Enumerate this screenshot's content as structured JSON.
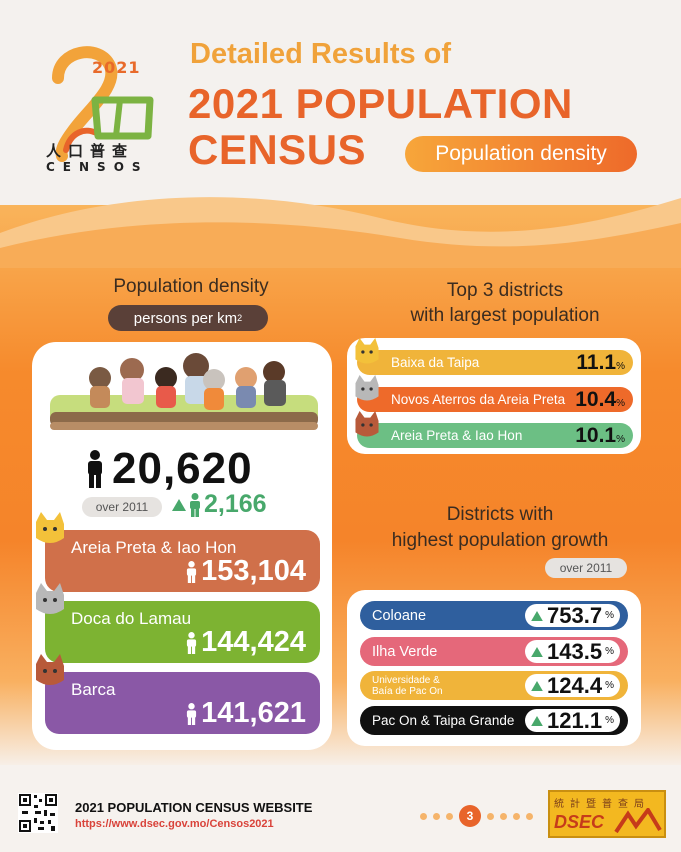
{
  "header": {
    "logo_year": "2021",
    "logo_cn": "人口普查",
    "logo_censos": "CENSOS",
    "title_line1": "Detailed Results of",
    "title_line2": "2021 POPULATION",
    "title_line3": "CENSUS",
    "topic": "Population density"
  },
  "density": {
    "title": "Population density",
    "unit": "persons per km",
    "unit_sup": "2",
    "total": "20,620",
    "over_label": "over 2011",
    "increase": "2,166",
    "districts": [
      {
        "name": "Areia Preta & Iao Hon",
        "value": "153,104",
        "color": "#d0704a"
      },
      {
        "name": "Doca do Lamau",
        "value": "144,424",
        "color": "#7db332"
      },
      {
        "name": "Barca",
        "value": "141,621",
        "color": "#8a58a6"
      }
    ]
  },
  "top3": {
    "title_line1": "Top 3 districts",
    "title_line2": "with largest population",
    "items": [
      {
        "name": "Baixa da Taipa",
        "value": "11.1",
        "unit": "%",
        "color": "#f0b43a"
      },
      {
        "name": "Novos Aterros da Areia Preta",
        "value": "10.4",
        "unit": "%",
        "color": "#ee6a2a"
      },
      {
        "name": "Areia Preta & Iao Hon",
        "value": "10.1",
        "unit": "%",
        "color": "#6cbf84"
      }
    ]
  },
  "growth": {
    "title_line1": "Districts with",
    "title_line2": "highest population growth",
    "over_label": "over 2011",
    "items": [
      {
        "name": "Coloane",
        "value": "753.7",
        "unit": "%",
        "color": "#2f5f9e"
      },
      {
        "name": "Ilha Verde",
        "value": "143.5",
        "unit": "%",
        "color": "#e5687a"
      },
      {
        "name_line1": "Universidade &",
        "name_line2": "Baía de Pac On",
        "value": "124.4",
        "unit": "%",
        "color": "#f0b43a"
      },
      {
        "name": "Pac On & Taipa Grande",
        "value": "121.1",
        "unit": "%",
        "color": "#111111"
      }
    ]
  },
  "footer": {
    "website_title": "2021 POPULATION CENSUS WEBSITE",
    "website_url": "https://www.dsec.gov.mo/Censos2021",
    "page": "3",
    "dsec_cn": "統計暨普查局",
    "dsec_en": "DSEC"
  }
}
